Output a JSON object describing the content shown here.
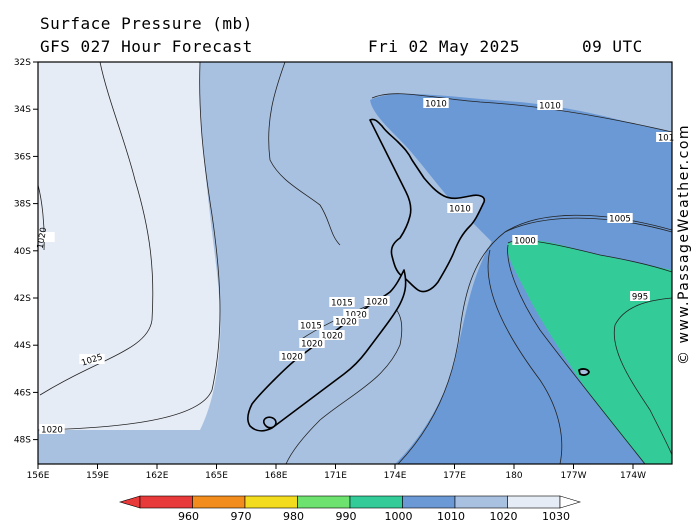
{
  "header": {
    "title": "Surface Pressure (mb)",
    "subtitle": "GFS 027 Hour Forecast",
    "valid_date": "Fri 02 May 2025",
    "valid_time": "09 UTC"
  },
  "watermark": "© www.PassageWeather.com",
  "axes": {
    "lat_labels": [
      "32S",
      "34S",
      "36S",
      "38S",
      "40S",
      "42S",
      "44S",
      "46S",
      "48S"
    ],
    "lon_labels": [
      "156E",
      "159E",
      "162E",
      "165E",
      "168E",
      "171E",
      "174E",
      "177E",
      "180",
      "177W",
      "174W"
    ]
  },
  "contour_labels": [
    "1010",
    "1010",
    "101",
    "1010",
    "1005",
    "1000",
    "995",
    "1015",
    "1020",
    "1020",
    "1020",
    "1020",
    "1020",
    "1015",
    "1020",
    "1025",
    "1020",
    "1020"
  ],
  "legend": {
    "values": [
      "960",
      "970",
      "980",
      "990",
      "1000",
      "1010",
      "1020",
      "1030"
    ],
    "colors": [
      "#e83a3a",
      "#f28c1c",
      "#f3dc1e",
      "#6ee26e",
      "#33cc99",
      "#6b99d5",
      "#a9c1e0",
      "#e6ecf6"
    ]
  },
  "colors": {
    "p_1025_plus": "#e6ecf6",
    "p_1020": "#a9c1e0",
    "p_1010": "#6b99d5",
    "p_1000": "#33cc99",
    "land": "#a9c1e0"
  }
}
